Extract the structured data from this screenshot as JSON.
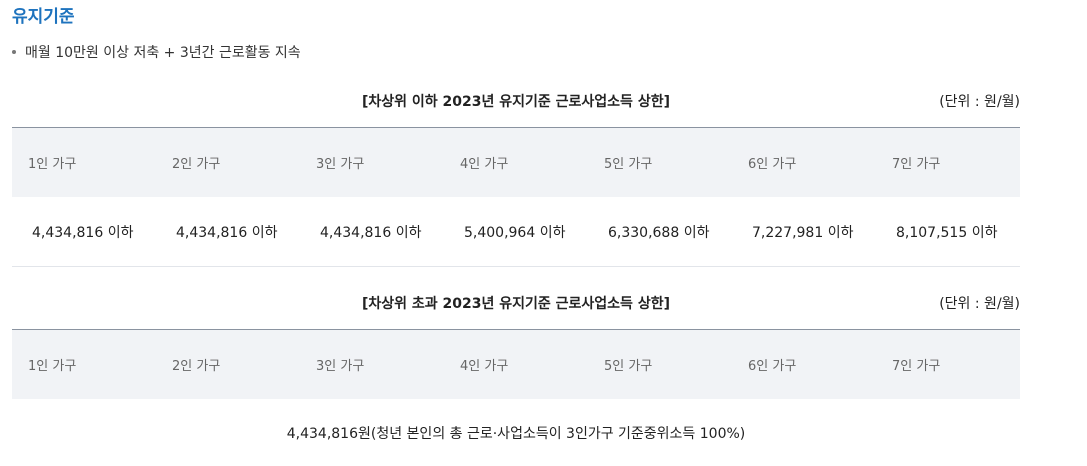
{
  "section": {
    "title": "유지기준",
    "bullet": "매월 10만원 이상 저축 + 3년간 근로활동 지속"
  },
  "table1": {
    "caption": "[차상위 이하 2023년 유지기준 근로사업소득 상한]",
    "unit": "(단위 : 원/월)",
    "headers": [
      "1인 가구",
      "2인 가구",
      "3인 가구",
      "4인 가구",
      "5인 가구",
      "6인 가구",
      "7인 가구"
    ],
    "values": [
      "4,434,816 이하",
      "4,434,816 이하",
      "4,434,816 이하",
      "5,400,964 이하",
      "6,330,688 이하",
      "7,227,981 이하",
      "8,107,515 이하"
    ]
  },
  "table2": {
    "caption": "[차상위 초과 2023년 유지기준 근로사업소득 상한]",
    "unit": "(단위 : 원/월)",
    "headers": [
      "1인 가구",
      "2인 가구",
      "3인 가구",
      "4인 가구",
      "5인 가구",
      "6인 가구",
      "7인 가구"
    ],
    "note": "4,434,816원(청년 본인의 총 근로·사업소득이 3인가구 기준중위소득 100%)"
  }
}
